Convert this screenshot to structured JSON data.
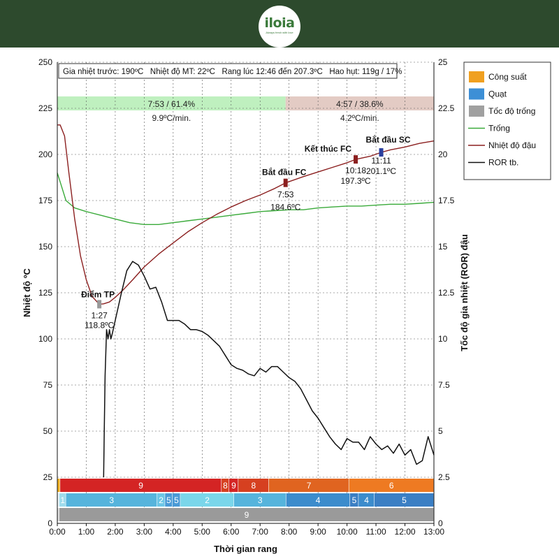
{
  "brand": {
    "name": "iloia",
    "tagline": "Always fresh with love"
  },
  "chart_data": {
    "type": "line",
    "title": "",
    "info_line": "Gia nhiệt trước: 190ºC   Nhiệt độ MT: 22ºC   Rang lúc 12:46 đến 207.3ºC   Hao hụt: 119g / 17%",
    "xlabel": "Thời gian rang",
    "ylabel_left": "Nhiệt độ ºC",
    "ylabel_right": "Tốc độ gia nhiệt (ROR) đậu",
    "xlim": [
      0,
      13
    ],
    "ylim_left": [
      0,
      250
    ],
    "ylim_right": [
      0,
      25
    ],
    "x_ticks": [
      "0:00",
      "1:00",
      "2:00",
      "3:00",
      "4:00",
      "5:00",
      "6:00",
      "7:00",
      "8:00",
      "9:00",
      "10:00",
      "11:00",
      "12:00",
      "13:00"
    ],
    "y_ticks_left": [
      "0",
      "25",
      "50",
      "75",
      "100",
      "125",
      "150",
      "175",
      "200",
      "225",
      "250"
    ],
    "y_ticks_right": [
      "0",
      "2.5",
      "5",
      "7.5",
      "10",
      "12.5",
      "15",
      "17.5",
      "20",
      "22.5",
      "25"
    ],
    "grid": true,
    "legend_position": "right",
    "legend": [
      {
        "label": "Công suất",
        "kind": "swatch",
        "color": "#f0a020"
      },
      {
        "label": "Quạt",
        "kind": "swatch",
        "color": "#3d8fd6"
      },
      {
        "label": "Tốc độ trống",
        "kind": "swatch",
        "color": "#a0a0a0"
      },
      {
        "label": "Trống",
        "kind": "line",
        "color": "#3aaa3a"
      },
      {
        "label": "Nhiệt độ đậu",
        "kind": "line",
        "color": "#8b1f1f"
      },
      {
        "label": "ROR tb.",
        "kind": "line",
        "color": "#111111"
      }
    ],
    "phases": [
      {
        "start": 0,
        "end": 7.88,
        "label": "7:53 / 61.4%",
        "rate": "9.9ºC/min.",
        "color": "#bff0bf"
      },
      {
        "start": 7.88,
        "end": 13,
        "label": "4:57 / 38.6%",
        "rate": "4.2ºC/min.",
        "color": "#e3cbc4"
      }
    ],
    "series": [
      {
        "name": "Trống",
        "axis": "left",
        "color": "#3aaa3a",
        "x": [
          0,
          0.12,
          0.3,
          0.6,
          1,
          1.5,
          2,
          2.5,
          3,
          3.5,
          4,
          4.5,
          5,
          5.5,
          6,
          6.5,
          7,
          7.5,
          8,
          8.5,
          9,
          9.5,
          10,
          10.5,
          11,
          11.5,
          12,
          12.5,
          13
        ],
        "y": [
          190,
          184,
          175,
          171,
          169,
          167,
          165,
          163,
          162,
          162,
          163,
          164,
          165,
          166,
          167,
          168,
          169,
          169.5,
          170,
          170,
          171,
          171.5,
          172,
          172,
          172.5,
          173,
          173,
          173.5,
          174
        ]
      },
      {
        "name": "Nhiệt độ đậu",
        "axis": "left",
        "color": "#8b1f1f",
        "x": [
          0,
          0.1,
          0.25,
          0.4,
          0.6,
          0.8,
          1,
          1.2,
          1.45,
          1.6,
          1.8,
          2,
          2.3,
          2.6,
          3,
          3.5,
          4,
          4.5,
          5,
          5.5,
          6,
          6.5,
          7,
          7.5,
          7.88,
          8.5,
          9,
          9.5,
          10,
          10.3,
          10.8,
          11.18,
          11.5,
          12,
          12.5,
          13
        ],
        "y": [
          216,
          216,
          210,
          190,
          165,
          145,
          132,
          123,
          118.8,
          119,
          120,
          122.5,
          127,
          132,
          139,
          146,
          152,
          158,
          163,
          167.5,
          171.5,
          175,
          178,
          181.5,
          184.6,
          188,
          190.5,
          193,
          195.5,
          197.3,
          199,
          201.1,
          202.5,
          204,
          206,
          207.3
        ]
      },
      {
        "name": "ROR tb.",
        "axis": "right",
        "color": "#111111",
        "x": [
          1.6,
          1.62,
          1.65,
          1.7,
          1.75,
          1.8,
          1.85,
          1.9,
          2,
          2.2,
          2.4,
          2.6,
          2.8,
          3,
          3.2,
          3.4,
          3.6,
          3.8,
          4,
          4.2,
          4.4,
          4.6,
          4.8,
          5,
          5.2,
          5.4,
          5.6,
          5.8,
          6,
          6.2,
          6.4,
          6.6,
          6.8,
          7,
          7.2,
          7.4,
          7.6,
          7.8,
          8,
          8.2,
          8.4,
          8.6,
          8.8,
          9,
          9.2,
          9.4,
          9.6,
          9.8,
          10,
          10.2,
          10.4,
          10.6,
          10.8,
          11,
          11.2,
          11.4,
          11.6,
          11.8,
          12,
          12.2,
          12.4,
          12.6,
          12.8,
          13
        ],
        "y": [
          2.5,
          5,
          8,
          10.5,
          10,
          10.5,
          10,
          10.3,
          11,
          12.4,
          13.7,
          14.2,
          14,
          13.4,
          12.7,
          12.8,
          12,
          11,
          11,
          11,
          10.8,
          10.5,
          10.5,
          10.4,
          10.2,
          9.9,
          9.6,
          9.1,
          8.6,
          8.4,
          8.3,
          8.1,
          8,
          8.4,
          8.2,
          8.5,
          8.5,
          8.2,
          7.9,
          7.7,
          7.3,
          6.7,
          6.1,
          5.7,
          5.2,
          4.7,
          4.3,
          4.0,
          4.6,
          4.4,
          4.4,
          4.0,
          4.7,
          4.3,
          4.0,
          4.2,
          3.8,
          4.3,
          3.7,
          4.0,
          3.2,
          3.4,
          4.7,
          3.7
        ]
      }
    ],
    "annotations": [
      {
        "label": "Điểm TP",
        "time": "1:27",
        "temp": "118.8ºC",
        "x": 1.45,
        "y": 118.8,
        "color": "#999999"
      },
      {
        "label": "Bắt đầu FC",
        "time": "7:53",
        "temp": "184.6ºC",
        "x": 7.88,
        "y": 184.6,
        "color": "#8b1f1f"
      },
      {
        "label": "Kết thúc FC",
        "time": "10:18",
        "temp": "197.3ºC",
        "x": 10.3,
        "y": 197.3,
        "color": "#8b1f1f"
      },
      {
        "label": "Bắt đầu SC",
        "time": "11:11",
        "temp": "201.1ºC",
        "x": 11.18,
        "y": 201.1,
        "color": "#2a3f9e"
      }
    ],
    "bands": [
      {
        "name": "Công suất",
        "row": 0,
        "segments": [
          {
            "start": 0,
            "end": 0.1,
            "value": "",
            "color": "#f0b020"
          },
          {
            "start": 0.1,
            "end": 5.67,
            "value": "9",
            "color": "#d42424"
          },
          {
            "start": 5.67,
            "end": 5.93,
            "value": "8",
            "color": "#d64020"
          },
          {
            "start": 5.93,
            "end": 6.25,
            "value": "9",
            "color": "#d42424"
          },
          {
            "start": 6.25,
            "end": 7.3,
            "value": "8",
            "color": "#d64020"
          },
          {
            "start": 7.3,
            "end": 10.07,
            "value": "7",
            "color": "#e06420"
          },
          {
            "start": 10.07,
            "end": 13,
            "value": "6",
            "color": "#ee7a22"
          }
        ]
      },
      {
        "name": "Quạt",
        "row": 1,
        "segments": [
          {
            "start": 0,
            "end": 0.07,
            "value": "",
            "color": "#e8f4f8"
          },
          {
            "start": 0.07,
            "end": 0.3,
            "value": "1",
            "color": "#9fdcec"
          },
          {
            "start": 0.3,
            "end": 3.45,
            "value": "3",
            "color": "#56b4dc"
          },
          {
            "start": 3.45,
            "end": 3.72,
            "value": "2",
            "color": "#6cc6e6"
          },
          {
            "start": 3.72,
            "end": 3.97,
            "value": "5",
            "color": "#4a9ad6"
          },
          {
            "start": 3.97,
            "end": 4.25,
            "value": "5",
            "color": "#4a9ad6"
          },
          {
            "start": 4.25,
            "end": 6.1,
            "value": "2",
            "color": "#7ad6ea"
          },
          {
            "start": 6.1,
            "end": 7.9,
            "value": "3",
            "color": "#56b4dc"
          },
          {
            "start": 7.9,
            "end": 10.1,
            "value": "4",
            "color": "#3c8ccc"
          },
          {
            "start": 10.1,
            "end": 10.4,
            "value": "5",
            "color": "#3b7fc4"
          },
          {
            "start": 10.4,
            "end": 10.95,
            "value": "4",
            "color": "#3c8ccc"
          },
          {
            "start": 10.95,
            "end": 13,
            "value": "5",
            "color": "#3b7fc4"
          }
        ]
      },
      {
        "name": "Tốc độ trống",
        "row": 2,
        "segments": [
          {
            "start": 0,
            "end": 0.07,
            "value": "",
            "color": "#d8d8d8"
          },
          {
            "start": 0.07,
            "end": 13,
            "value": "9",
            "color": "#9a9a9a"
          }
        ]
      }
    ]
  }
}
